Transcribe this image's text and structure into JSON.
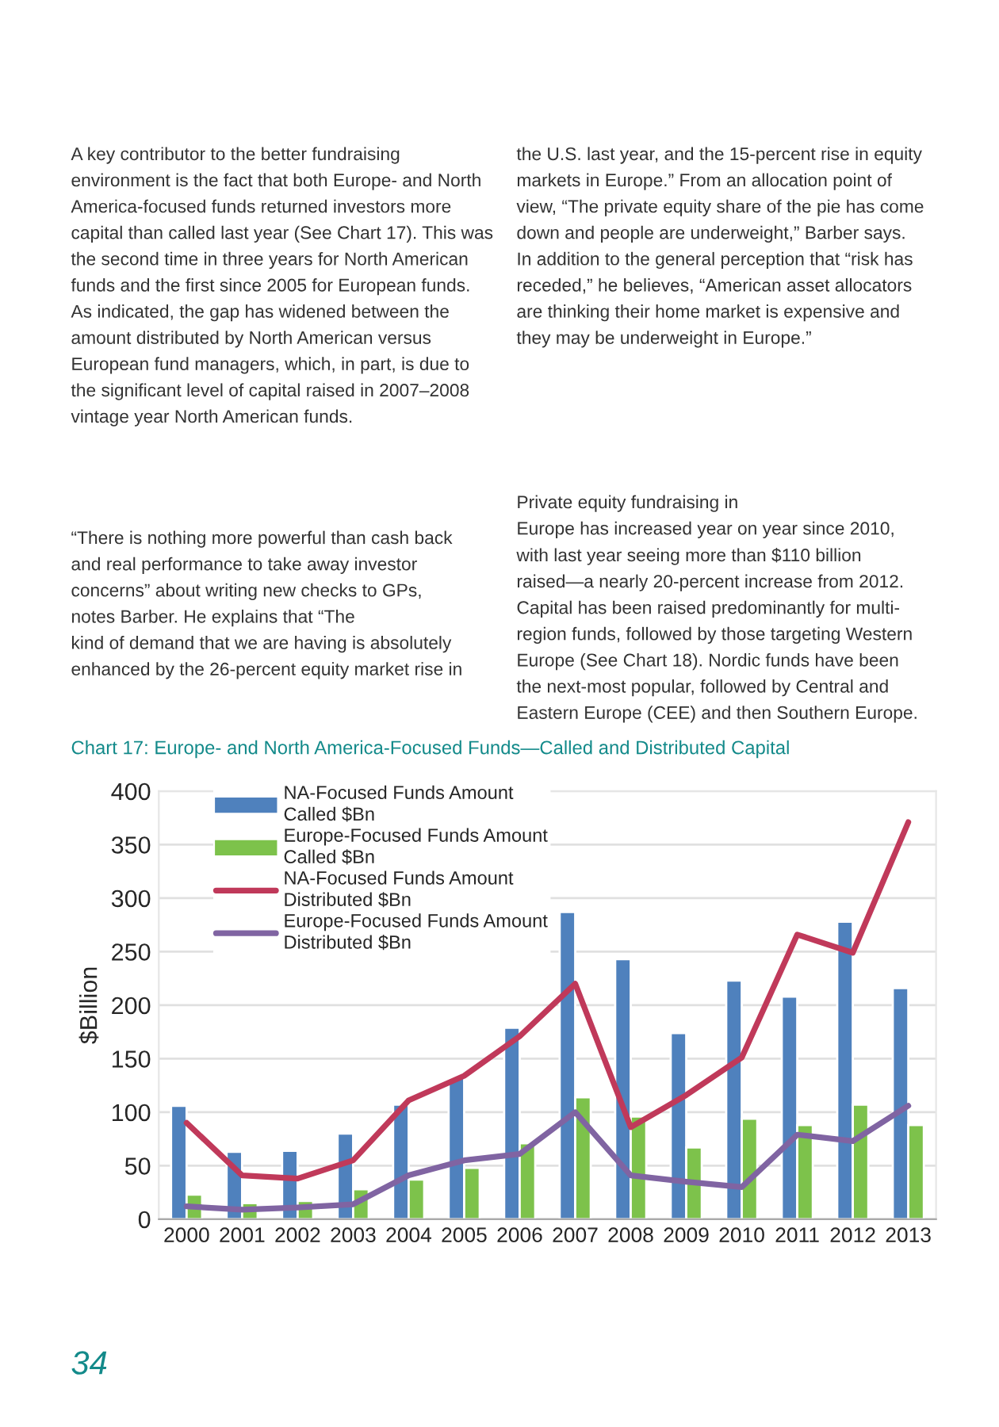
{
  "chart_data": {
    "type": "bar",
    "title": "Chart 17: Europe- and North America-Focused Funds—Called and Distributed Capital",
    "ylabel": "$Billion",
    "categories": [
      "2000",
      "2001",
      "2002",
      "2003",
      "2004",
      "2005",
      "2006",
      "2007",
      "2008",
      "2009",
      "2010",
      "2011",
      "2012",
      "2013"
    ],
    "series": [
      {
        "name": "NA-Focused Funds Amount Called $Bn",
        "color": "#4f81bd",
        "values": [
          106,
          63,
          64,
          80,
          107,
          132,
          179,
          287,
          243,
          174,
          223,
          208,
          278,
          216
        ]
      },
      {
        "name": "Europe-Focused Funds Amount Called $Bn",
        "color": "#7dc24b",
        "values": [
          23,
          15,
          17,
          28,
          37,
          48,
          71,
          114,
          96,
          67,
          94,
          88,
          107,
          88
        ]
      },
      {
        "name": "NA-Focused Funds Amount Distributed $Bn",
        "type": "line",
        "color": "#c0395a",
        "values": [
          90,
          41,
          38,
          55,
          111,
          134,
          171,
          220,
          86,
          116,
          151,
          266,
          249,
          371
        ]
      },
      {
        "name": "Europe-Focused Funds Amount Distributed $Bn",
        "type": "line",
        "color": "#8064a2",
        "values": [
          12,
          9,
          11,
          14,
          41,
          55,
          61,
          100,
          41,
          35,
          30,
          79,
          73,
          106
        ]
      }
    ],
    "ylim": [
      0,
      400
    ],
    "yticks": [
      0,
      50,
      100,
      150,
      200,
      250,
      300,
      350,
      400
    ],
    "grid": "y",
    "legend": "top left",
    "marker": "none",
    "line_style": "solid",
    "annotations": [
      "A key contributor to the better fundraising\nenvironment is the fact that both Europe- and North\nAmerica-focused funds returned investors more\ncapital than called last year (See Chart 17). This was\nthe second time in three years for North American\nfunds and the first since 2005 for European funds.\nAs indicated, the gap has widened between the\namount distributed by North American versus\nEuropean fund managers, which, in part, is due to\nthe significant level of capital raised in 2007–2008\nvintage year North American funds.",
      "“There is nothing more powerful than cash back\nand real performance to take away investor\nconcerns” about writing new checks to GPs,\nnotes Barber. He explains that “The\nkind of demand that we are having is absolutely\nenhanced by the 26-percent equity market rise in",
      "the U.S. last year, and the 15-percent rise in equity\nmarkets in Europe.” From an allocation point of\nview, “The private equity share of the pie has come\ndown and people are underweight,” Barber says.\nIn addition to the general perception that “risk has\nreceded,” he believes, “American asset allocators\nare thinking their home market is expensive and\nthey may be underweight in Europe.”",
      "Private equity fundraising in\nEurope has increased year on year since 2010,\nwith last year seeing more than $110 billion\nraised—a nearly 20-percent increase from 2012.\nCapital has been raised predominantly for multi-\nregion funds, followed by those targeting Western\nEurope (See Chart 18). Nordic funds have been\nthe next-most popular, followed by Central and\nEastern Europe (CEE) and then Southern Europe.",
      "34"
    ]
  }
}
